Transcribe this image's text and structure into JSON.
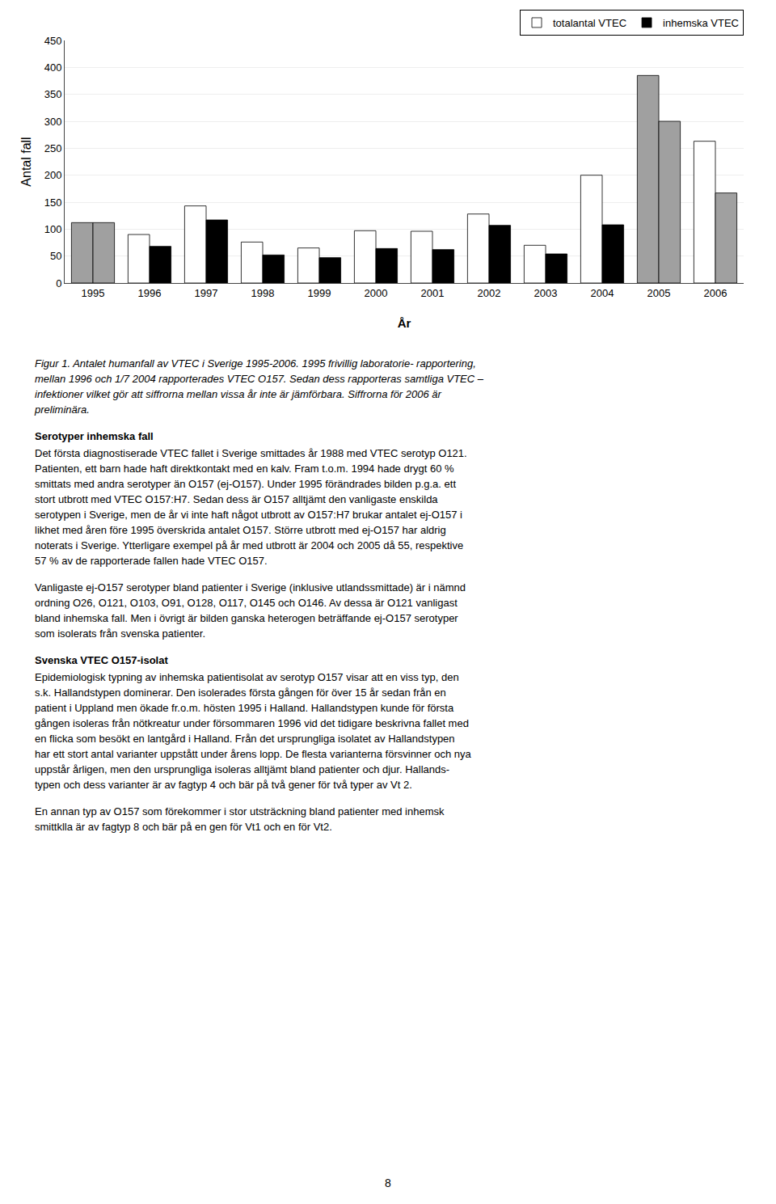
{
  "chart_data": {
    "type": "bar",
    "categories": [
      "1995",
      "1996",
      "1997",
      "1998",
      "1999",
      "2000",
      "2001",
      "2002",
      "2003",
      "2004",
      "2005",
      "2006"
    ],
    "series": [
      {
        "name": "totalantal VTEC",
        "color": "#ffffff",
        "colors": [
          "#a0a0a0",
          "#ffffff",
          "#ffffff",
          "#ffffff",
          "#ffffff",
          "#ffffff",
          "#ffffff",
          "#ffffff",
          "#ffffff",
          "#ffffff",
          "#a0a0a0",
          "#ffffff"
        ],
        "values": [
          112,
          90,
          143,
          76,
          65,
          97,
          96,
          128,
          70,
          200,
          385,
          263
        ]
      },
      {
        "name": "inhemska VTEC",
        "color": "#000000",
        "colors": [
          "#a0a0a0",
          "#000000",
          "#000000",
          "#000000",
          "#000000",
          "#000000",
          "#000000",
          "#000000",
          "#000000",
          "#000000",
          "#a0a0a0",
          "#a0a0a0"
        ],
        "values": [
          112,
          68,
          117,
          52,
          47,
          64,
          62,
          107,
          54,
          108,
          300,
          167
        ]
      }
    ],
    "xlabel": "År",
    "ylabel": "Antal fall",
    "ylim": [
      0,
      450
    ],
    "yticks": [
      0,
      50,
      100,
      150,
      200,
      250,
      300,
      350,
      400,
      450
    ],
    "grid": true,
    "legend": "upper right",
    "annotations": [
      [
        "Figur 1. Antalet humanfall av VTEC i Sverige 1995-2006. 1995 frivillig laboratorie- rapportering,",
        "mellan 1996 och 1/7 2004 rapporterades VTEC O157. Sedan dess rapporteras samtliga VTEC –",
        "infektioner vilket gör att siffrorna mellan vissa år inte är jämförbara. Siffrorna för 2006 är",
        "preliminära."
      ],
      [
        "Serotyper inhemska fall"
      ],
      [
        "Det första diagnostiserade VTEC fallet i Sverige smittades år 1988 med VTEC serotyp O121.",
        "Patienten, ett barn hade haft direktkontakt med en kalv. Fram t.o.m. 1994 hade drygt 60 %",
        "smittats med andra serotyper än O157 (ej-O157). Under 1995 förändrades bilden p.g.a. ett",
        "stort utbrott med VTEC O157:H7. Sedan dess är O157 alltjämt den vanligaste enskilda",
        "serotypen i Sverige, men de år vi inte haft något utbrott av O157:H7 brukar antalet ej-O157 i",
        "likhet med åren före 1995 överskrida antalet O157. Större utbrott med ej-O157 har aldrig",
        "noterats i Sverige. Ytterligare exempel på år med utbrott är 2004 och 2005 då 55, respektive",
        "57 % av de rapporterade fallen hade VTEC O157."
      ],
      [
        "Vanligaste ej-O157 serotyper bland patienter i Sverige (inklusive utlandssmittade) är i nämnd",
        "ordning O26, O121, O103, O91, O128, O117, O145 och O146. Av dessa är O121 vanligast",
        "bland inhemska fall. Men i övrigt är bilden ganska heterogen beträffande ej-O157 serotyper",
        "som isolerats från svenska patienter."
      ],
      [
        "Svenska VTEC O157-isolat"
      ],
      [
        "Epidemiologisk typning av inhemska patientisolat av serotyp O157 visar att en viss typ, den",
        "s.k. Hallandstypen dominerar. Den isolerades första gången för över 15 år sedan från en",
        "patient i Uppland men ökade fr.o.m. hösten 1995 i Halland. Hallandstypen kunde för första",
        "gången isoleras från nötkreatur under försommaren 1996 vid det tidigare beskrivna fallet med",
        "en flicka som besökt en lantgård i Halland. Från det ursprungliga isolatet av Hallandstypen",
        "har ett stort antal varianter uppstått under årens lopp. De flesta varianterna försvinner och nya",
        "uppstår årligen, men den ursprungliga isoleras alltjämt bland patienter och djur. Hallands-",
        "typen och dess varianter är av fagtyp 4 och bär på två gener för två typer av Vt 2."
      ],
      [
        "En annan typ av O157 som förekommer i stor utsträckning bland patienter med inhemsk",
        "smittklla är av fagtyp 8 och bär på en gen för Vt1 och en för Vt2."
      ],
      [
        "8"
      ]
    ]
  }
}
